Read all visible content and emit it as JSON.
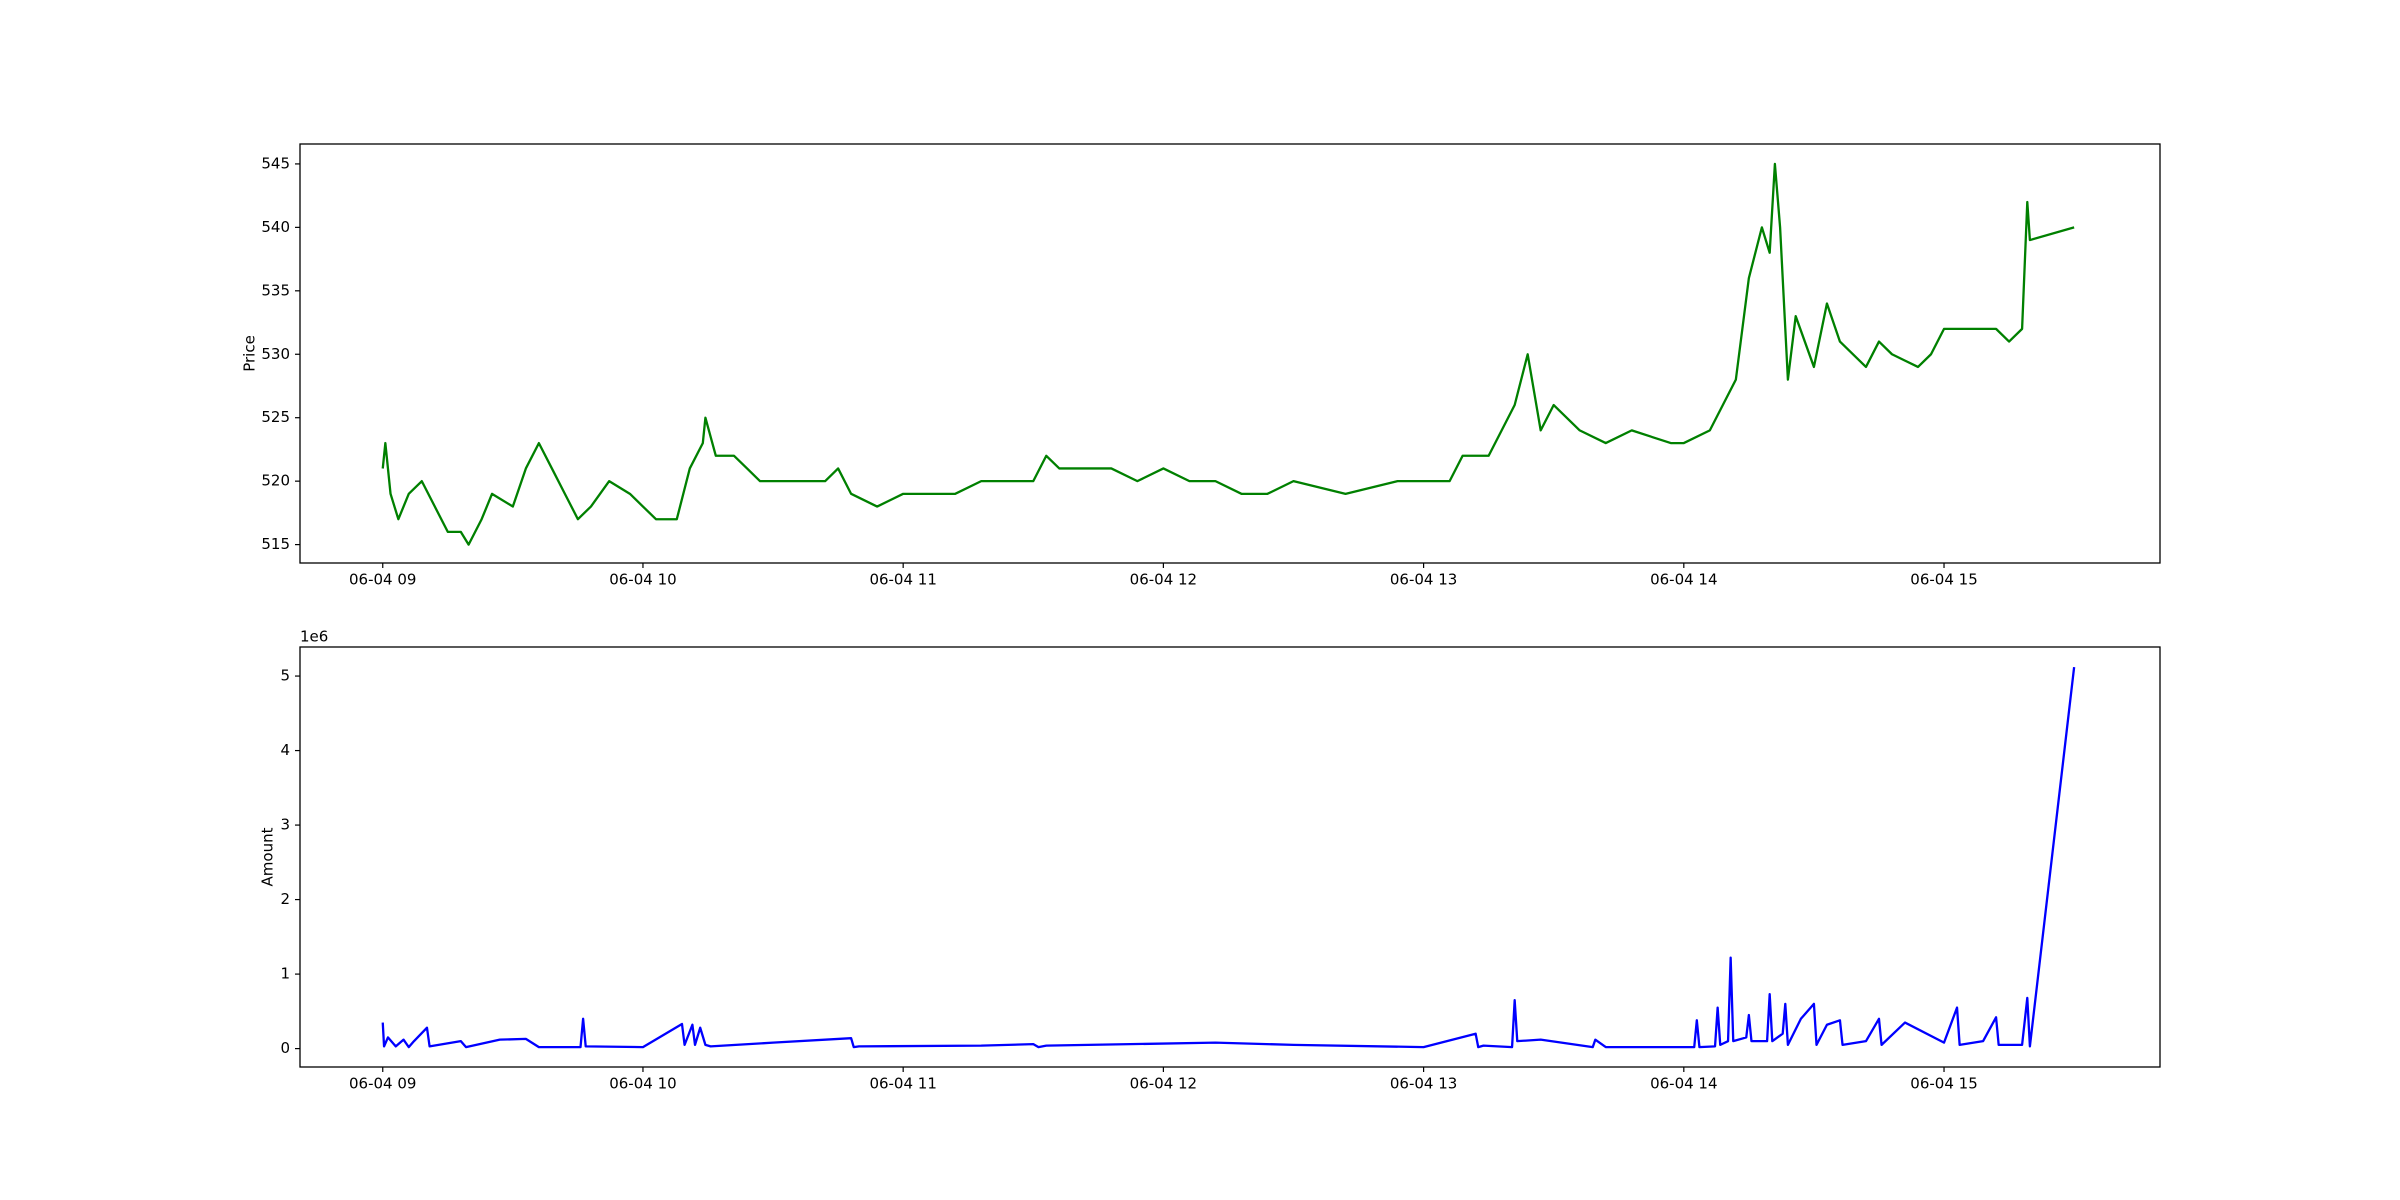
{
  "chart_data": [
    {
      "type": "line",
      "y_label": "Price",
      "xlim": [
        8.682,
        15.83
      ],
      "xticks": [
        {
          "value": 9,
          "label": "06-04 09"
        },
        {
          "value": 10,
          "label": "06-04 10"
        },
        {
          "value": 11,
          "label": "06-04 11"
        },
        {
          "value": 12,
          "label": "06-04 12"
        },
        {
          "value": 13,
          "label": "06-04 13"
        },
        {
          "value": 14,
          "label": "06-04 14"
        },
        {
          "value": 15,
          "label": "06-04 15"
        }
      ],
      "ylim": [
        513.55,
        546.57
      ],
      "yticks": [
        515,
        520,
        525,
        530,
        535,
        540,
        545
      ],
      "series": [
        {
          "color": "#008000",
          "x": [
            9.0,
            9.01,
            9.03,
            9.06,
            9.1,
            9.15,
            9.2,
            9.25,
            9.3,
            9.33,
            9.38,
            9.42,
            9.5,
            9.55,
            9.6,
            9.65,
            9.7,
            9.75,
            9.8,
            9.87,
            9.95,
            10.0,
            10.05,
            10.13,
            10.18,
            10.23,
            10.24,
            10.28,
            10.35,
            10.4,
            10.45,
            10.55,
            10.7,
            10.75,
            10.8,
            10.9,
            11.0,
            11.2,
            11.3,
            11.5,
            11.55,
            11.6,
            11.8,
            11.9,
            12.0,
            12.1,
            12.2,
            12.3,
            12.4,
            12.5,
            12.7,
            12.9,
            13.1,
            13.15,
            13.25,
            13.35,
            13.4,
            13.45,
            13.5,
            13.6,
            13.7,
            13.8,
            13.95,
            14.0,
            14.1,
            14.15,
            14.2,
            14.25,
            14.3,
            14.33,
            14.35,
            14.37,
            14.4,
            14.43,
            14.5,
            14.55,
            14.6,
            14.7,
            14.75,
            14.8,
            14.9,
            14.95,
            15.0,
            15.1,
            15.2,
            15.25,
            15.3,
            15.32,
            15.33,
            15.5
          ],
          "values": [
            521,
            523,
            519,
            517,
            519,
            520,
            518,
            516,
            516,
            515,
            517,
            519,
            518,
            521,
            523,
            521,
            519,
            517,
            518,
            520,
            519,
            518,
            517,
            517,
            521,
            523,
            525,
            522,
            522,
            521,
            520,
            520,
            520,
            521,
            519,
            518,
            519,
            519,
            520,
            520,
            522,
            521,
            521,
            520,
            521,
            520,
            520,
            519,
            519,
            520,
            519,
            520,
            520,
            522,
            522,
            526,
            530,
            524,
            526,
            524,
            523,
            524,
            523,
            523,
            524,
            526,
            528,
            536,
            540,
            538,
            545,
            540,
            528,
            533,
            529,
            534,
            531,
            529,
            531,
            530,
            529,
            530,
            532,
            532,
            532,
            531,
            532,
            542,
            539,
            540
          ]
        }
      ]
    },
    {
      "type": "line",
      "y_label": "Amount",
      "y_offset_label": "1e6",
      "xlim": [
        8.682,
        15.83
      ],
      "xticks": [
        {
          "value": 9,
          "label": "06-04 09"
        },
        {
          "value": 10,
          "label": "06-04 10"
        },
        {
          "value": 11,
          "label": "06-04 11"
        },
        {
          "value": 12,
          "label": "06-04 12"
        },
        {
          "value": 13,
          "label": "06-04 13"
        },
        {
          "value": 14,
          "label": "06-04 14"
        },
        {
          "value": 15,
          "label": "06-04 15"
        }
      ],
      "ylim": [
        -0.247,
        5.39
      ],
      "yticks": [
        0,
        1,
        2,
        3,
        4,
        5
      ],
      "series": [
        {
          "color": "#0000ff",
          "x": [
            9.0,
            9.005,
            9.02,
            9.05,
            9.08,
            9.1,
            9.12,
            9.17,
            9.18,
            9.3,
            9.32,
            9.45,
            9.55,
            9.6,
            9.76,
            9.77,
            9.78,
            10.0,
            10.15,
            10.16,
            10.19,
            10.2,
            10.22,
            10.24,
            10.26,
            10.5,
            10.8,
            10.81,
            10.83,
            11.3,
            11.5,
            11.52,
            11.55,
            12.2,
            12.5,
            13.0,
            13.2,
            13.21,
            13.23,
            13.34,
            13.35,
            13.36,
            13.45,
            13.65,
            13.66,
            13.7,
            14.0,
            14.04,
            14.05,
            14.06,
            14.12,
            14.13,
            14.14,
            14.17,
            14.18,
            14.19,
            14.24,
            14.25,
            14.26,
            14.32,
            14.33,
            14.34,
            14.38,
            14.39,
            14.4,
            14.45,
            14.5,
            14.51,
            14.55,
            14.6,
            14.61,
            14.7,
            14.75,
            14.76,
            14.85,
            15.0,
            15.05,
            15.06,
            15.15,
            15.2,
            15.21,
            15.3,
            15.32,
            15.33,
            15.5
          ],
          "values": [
            0.35,
            0.03,
            0.15,
            0.03,
            0.12,
            0.02,
            0.1,
            0.28,
            0.03,
            0.1,
            0.02,
            0.12,
            0.13,
            0.02,
            0.02,
            0.4,
            0.03,
            0.02,
            0.33,
            0.05,
            0.32,
            0.05,
            0.28,
            0.05,
            0.03,
            0.08,
            0.14,
            0.02,
            0.03,
            0.04,
            0.06,
            0.02,
            0.04,
            0.08,
            0.05,
            0.02,
            0.2,
            0.02,
            0.04,
            0.02,
            0.65,
            0.1,
            0.12,
            0.02,
            0.12,
            0.02,
            0.02,
            0.02,
            0.38,
            0.02,
            0.03,
            0.55,
            0.05,
            0.1,
            1.22,
            0.1,
            0.15,
            0.45,
            0.1,
            0.1,
            0.73,
            0.1,
            0.2,
            0.6,
            0.05,
            0.4,
            0.6,
            0.05,
            0.32,
            0.38,
            0.05,
            0.1,
            0.4,
            0.05,
            0.35,
            0.08,
            0.55,
            0.05,
            0.1,
            0.42,
            0.05,
            0.05,
            0.68,
            0.03,
            5.12
          ]
        }
      ]
    }
  ]
}
